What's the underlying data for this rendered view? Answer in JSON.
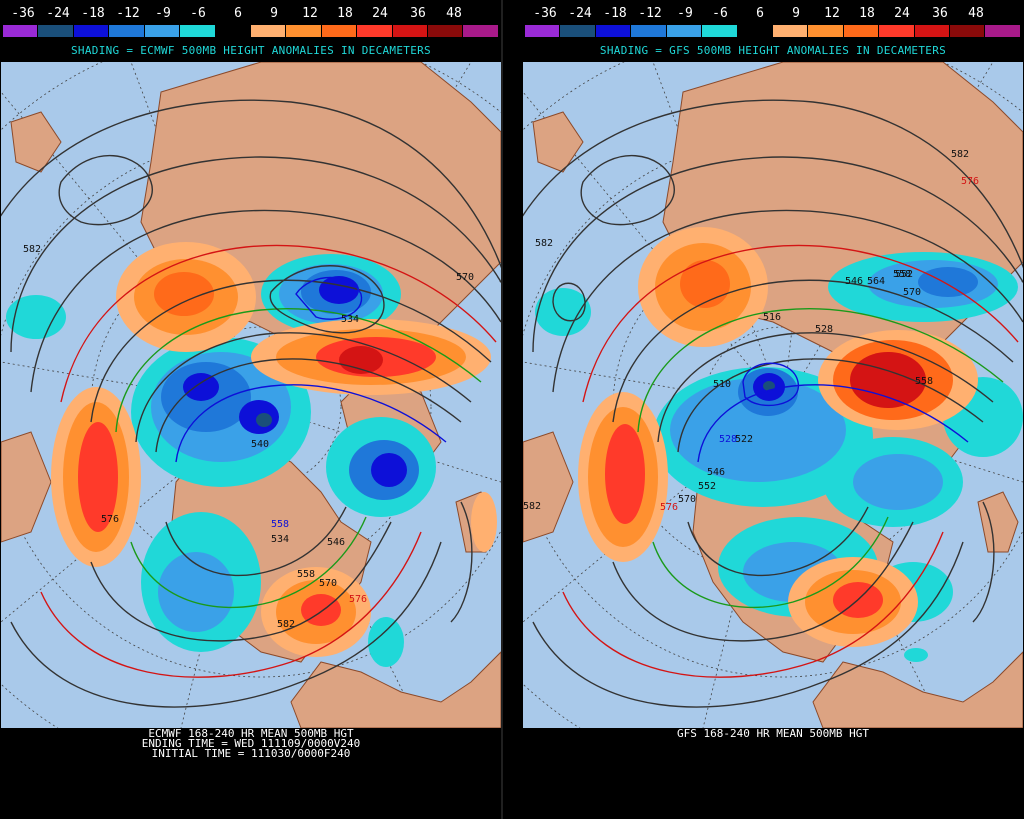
{
  "colorbar": {
    "labels": [
      "-36",
      "-24",
      "-18",
      "-12",
      "-9",
      "-6",
      "6",
      "9",
      "12",
      "18",
      "24",
      "36",
      "48"
    ],
    "colors": [
      "#9a2ad6",
      "#1a4f7a",
      "#0d10d8",
      "#1f78d9",
      "#3aa1e8",
      "#1fd8d8",
      "#000000",
      "#ffb070",
      "#ff9030",
      "#ff6a1a",
      "#ff3a2a",
      "#d41414",
      "#8a0a0a",
      "#a81a8a"
    ]
  },
  "left": {
    "shading_title": "SHADING = ECMWF 500MB HEIGHT ANOMALIES IN DECAMETERS",
    "caption_lines": [
      "ECMWF 168-240 HR MEAN 500MB HGT",
      "ENDING TIME = WED 111109/0000V240",
      "INITIAL TIME = 111030/0000F240"
    ],
    "contour_labels": [
      "534",
      "540",
      "534",
      "582",
      "570",
      "576",
      "546",
      "558",
      "558",
      "570",
      "576",
      "582"
    ]
  },
  "right": {
    "shading_title": "SHADING = GFS 500MB HEIGHT ANOMALIES IN DECAMETERS",
    "caption_lines": [
      "GFS 168-240 HR MEAN 500MB HGT"
    ],
    "contour_labels": [
      "582",
      "576",
      "552",
      "582",
      "546",
      "558",
      "570",
      "564",
      "516",
      "528",
      "522",
      "510",
      "558",
      "546",
      "552",
      "528",
      "570",
      "576",
      "582"
    ]
  }
}
